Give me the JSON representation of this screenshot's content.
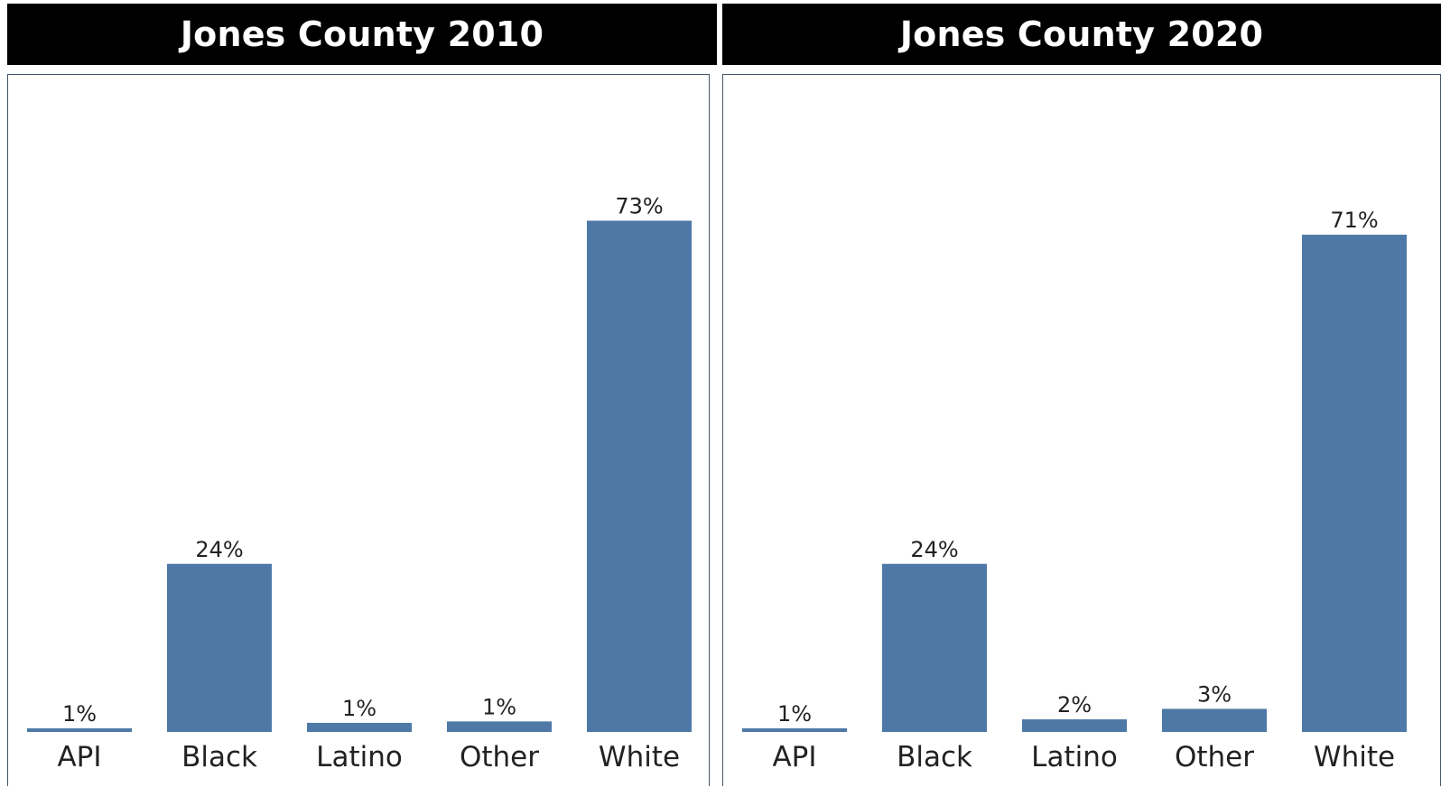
{
  "chart_data": [
    {
      "type": "bar",
      "title": "Jones County 2010",
      "categories": [
        "API",
        "Black",
        "Latino",
        "Other",
        "White"
      ],
      "values": [
        0.5,
        24,
        1.3,
        1.5,
        73
      ],
      "data_labels": [
        "1%",
        "24%",
        "1%",
        "1%",
        "73%"
      ],
      "ylim": [
        0,
        100
      ],
      "grid": false,
      "bar_color": "#4e79a7"
    },
    {
      "type": "bar",
      "title": "Jones County 2020",
      "categories": [
        "API",
        "Black",
        "Latino",
        "Other",
        "White"
      ],
      "values": [
        0.5,
        24,
        1.8,
        3.3,
        71
      ],
      "data_labels": [
        "1%",
        "24%",
        "2%",
        "3%",
        "71%"
      ],
      "ylim": [
        0,
        100
      ],
      "grid": false,
      "bar_color": "#4e79a7"
    }
  ]
}
